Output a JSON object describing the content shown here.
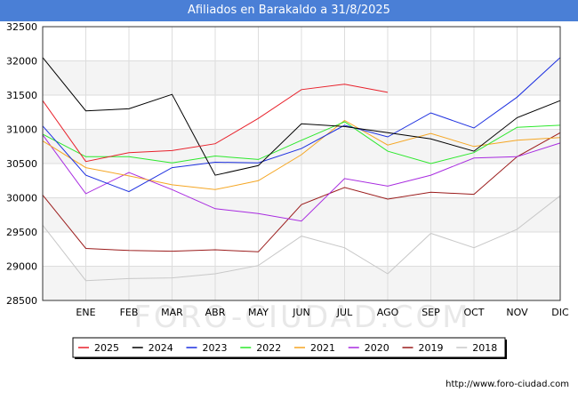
{
  "header": {
    "title": "Afiliados en Barakaldo a 31/8/2025"
  },
  "watermark": "FORO-CIUDAD.COM",
  "source": "http://www.foro-ciudad.com",
  "chart_data": {
    "type": "line",
    "title": "Afiliados en Barakaldo a 31/8/2025",
    "categories": [
      "",
      "ENE",
      "FEB",
      "MAR",
      "ABR",
      "MAY",
      "JUN",
      "JUL",
      "AGO",
      "SEP",
      "OCT",
      "NOV",
      "DIC"
    ],
    "ylim": [
      28500,
      32500
    ],
    "yticks": [
      28500,
      29000,
      29500,
      30000,
      30500,
      31000,
      31500,
      32000,
      32500
    ],
    "grid": true,
    "legend_position": "bottom",
    "series": [
      {
        "name": "2025",
        "color": "#e8202a",
        "values": [
          31420,
          30530,
          30660,
          30690,
          30790,
          31160,
          31580,
          31660,
          31540,
          null,
          null,
          null,
          null
        ]
      },
      {
        "name": "2024",
        "color": "#000000",
        "values": [
          32050,
          31270,
          31300,
          31510,
          30330,
          30470,
          31080,
          31040,
          30950,
          30860,
          30680,
          31170,
          31420
        ]
      },
      {
        "name": "2023",
        "color": "#1c2fe0",
        "values": [
          31050,
          30330,
          30090,
          30440,
          30520,
          30510,
          30720,
          31060,
          30890,
          31240,
          31020,
          31470,
          32050
        ]
      },
      {
        "name": "2022",
        "color": "#2be82b",
        "values": [
          30930,
          30600,
          30600,
          30510,
          30610,
          30560,
          30840,
          31110,
          30680,
          30500,
          30660,
          31030,
          31060
        ]
      },
      {
        "name": "2021",
        "color": "#f5a623",
        "values": [
          30830,
          30440,
          30320,
          30190,
          30120,
          30250,
          30630,
          31130,
          30770,
          30940,
          30750,
          30840,
          30880
        ]
      },
      {
        "name": "2020",
        "color": "#a82be0",
        "values": [
          30920,
          30060,
          30370,
          30120,
          29840,
          29770,
          29660,
          30280,
          30170,
          30330,
          30580,
          30600,
          30800
        ]
      },
      {
        "name": "2019",
        "color": "#9b1c1c",
        "values": [
          30040,
          29260,
          29230,
          29220,
          29240,
          29210,
          29900,
          30150,
          29980,
          30080,
          30050,
          30600,
          30950
        ]
      },
      {
        "name": "2018",
        "color": "#c8c8c8",
        "values": [
          29600,
          28790,
          28820,
          28830,
          28890,
          29010,
          29440,
          29270,
          28890,
          29480,
          29270,
          29540,
          30030
        ]
      }
    ]
  }
}
